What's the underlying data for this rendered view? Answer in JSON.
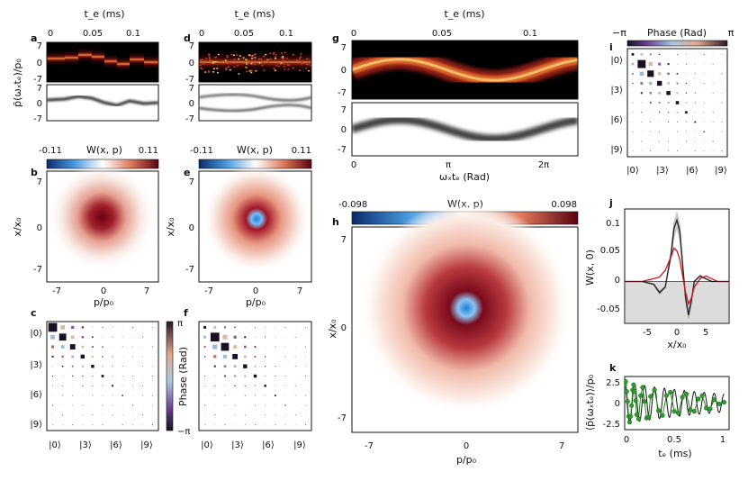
{
  "figure": {
    "panels": {
      "a": "a",
      "b": "b",
      "c": "c",
      "d": "d",
      "e": "e",
      "f": "f",
      "g": "g",
      "h": "h",
      "i": "i",
      "j": "j",
      "k": "k"
    },
    "labels": {
      "te_ms": "t_e (ms)",
      "p_bar_ylabel": "p̄(ωₓtₑ)/p₀",
      "x_x0": "x/x₀",
      "p_p0": "p/p₀",
      "wxp": "W(x, p)",
      "phase_rad": "Phase (Rad)",
      "omega_te_rad": "ωₓtₑ (Rad)",
      "wx0": "W(x, 0)",
      "k_ylabel": "⟨p̄(ωₓtₑ)⟩/p₀",
      "te_ms_k": "tₑ (ms)"
    },
    "ticks": {
      "te_top_ad": [
        "0",
        "0.05",
        "0.1"
      ],
      "te_top_g": [
        "0",
        "0.05",
        "0.1"
      ],
      "pm7": [
        "7",
        "0",
        "-7"
      ],
      "g_y": [
        "7",
        "0",
        "-7"
      ],
      "g_x": [
        "0",
        "π",
        "2π"
      ],
      "h_x": [
        "-7",
        "0",
        "7"
      ],
      "h_y": [
        "7",
        "0",
        "-7"
      ],
      "b_x": [
        "-7",
        "0",
        "7"
      ],
      "b_y": [
        "7",
        "0",
        "-7"
      ],
      "fock": [
        "|0⟩",
        "|3⟩",
        "|6⟩",
        "|9⟩"
      ],
      "j_x": [
        "-5",
        "0",
        "5"
      ],
      "j_y": [
        "0.1",
        "0.05",
        "0",
        "-0.05"
      ],
      "k_x": [
        "0",
        "0.5",
        "1"
      ],
      "k_y": [
        "2.5",
        "0",
        "-2.5"
      ],
      "phase_min": "−π",
      "phase_max": "π"
    },
    "colorbars": {
      "b_min": "-0.11",
      "b_max": "0.11",
      "e_min": "-0.11",
      "e_max": "0.11",
      "h_min": "-0.098",
      "h_max": "0.098"
    }
  },
  "chart_data": [
    {
      "id": "a",
      "type": "heatmap",
      "title": "",
      "xlabel": "t_e (ms)",
      "ylabel": "p̄(ωₓtₑ)/p₀",
      "xlim": [
        0,
        0.13
      ],
      "ylim": [
        -7,
        7
      ],
      "center_trace": [
        1,
        1.5,
        2.5,
        1.5,
        -0.5,
        -1.5,
        0.5,
        -0.5
      ]
    },
    {
      "id": "d",
      "type": "heatmap",
      "xlabel": "t_e (ms)",
      "xlim": [
        0,
        0.13
      ],
      "ylim": [
        -7,
        7
      ]
    },
    {
      "id": "g",
      "type": "heatmap",
      "xlabel": "ωₓtₑ (Rad)",
      "top_xlabel": "t_e (ms)",
      "xlim": [
        0,
        7.5
      ],
      "ylim": [
        -7,
        7
      ],
      "amplitude": 2.5
    },
    {
      "id": "b",
      "type": "heatmap",
      "title": "W(x, p)",
      "xlabel": "p/p₀",
      "ylabel": "x/x₀",
      "colorbar_range": [
        -0.11,
        0.11
      ]
    },
    {
      "id": "e",
      "type": "heatmap",
      "title": "W(x, p)",
      "xlabel": "p/p₀",
      "ylabel": "x/x₀",
      "colorbar_range": [
        -0.11,
        0.11
      ]
    },
    {
      "id": "h",
      "type": "heatmap",
      "title": "W(x, p)",
      "xlabel": "p/p₀",
      "ylabel": "x/x₀",
      "colorbar_range": [
        -0.098,
        0.098
      ]
    },
    {
      "id": "c",
      "type": "heatmap",
      "subtype": "hinton density matrix",
      "n": 11,
      "diag": [
        1.0,
        0.8,
        0.6,
        0.45,
        0.35,
        0.28,
        0.2,
        0.15,
        0.1,
        0.07,
        0.05
      ]
    },
    {
      "id": "f",
      "type": "heatmap",
      "subtype": "hinton density matrix",
      "n": 11,
      "diag": [
        0.3,
        1.0,
        0.9,
        0.6,
        0.45,
        0.35,
        0.25,
        0.18,
        0.12,
        0.08,
        0.05
      ]
    },
    {
      "id": "i",
      "type": "heatmap",
      "subtype": "hinton density matrix",
      "n": 11,
      "diag": [
        0.3,
        1.0,
        0.8,
        0.6,
        0.5,
        0.4,
        0.3,
        0.2,
        0.15,
        0.1,
        0.07
      ]
    },
    {
      "id": "j",
      "type": "line",
      "xlabel": "x/x₀",
      "ylabel": "W(x, 0)",
      "xlim": [
        -9,
        9
      ],
      "ylim": [
        -0.075,
        0.13
      ],
      "series": [
        {
          "color": "#d0121b",
          "x": [
            -9,
            -6,
            -4,
            -3,
            -2,
            -1,
            -0.5,
            0,
            0.5,
            1,
            1.5,
            2,
            2.5,
            3,
            4,
            5,
            6,
            7,
            9
          ],
          "y": [
            0,
            0,
            0.005,
            0.008,
            0.02,
            0.045,
            0.06,
            0.055,
            0.04,
            0.01,
            -0.02,
            -0.04,
            -0.03,
            -0.01,
            0.005,
            0.01,
            0.005,
            0,
            0
          ]
        },
        {
          "color": "#222222",
          "x": [
            -9,
            -6,
            -4,
            -3,
            -2,
            -1,
            -0.5,
            0,
            0.5,
            1,
            1.5,
            2,
            2.5,
            3,
            4,
            5,
            6,
            7,
            9
          ],
          "y": [
            0,
            0,
            -0.005,
            -0.02,
            -0.01,
            0.05,
            0.095,
            0.11,
            0.09,
            0.03,
            -0.03,
            -0.06,
            -0.035,
            0,
            0.01,
            0.005,
            0,
            0,
            0
          ]
        }
      ]
    },
    {
      "id": "k",
      "type": "scatter",
      "xlabel": "tₑ (ms)",
      "ylabel": "⟨p̄(ωₓtₑ)⟩/p₀",
      "xlim": [
        0,
        1.05
      ],
      "ylim": [
        -3.2,
        3.2
      ],
      "fit": {
        "amplitude": 2.5,
        "period_ms": 0.1,
        "decay_ms": 1.2
      },
      "points_x": [
        0.0,
        0.01,
        0.02,
        0.03,
        0.04,
        0.05,
        0.06,
        0.07,
        0.08,
        0.09,
        0.1,
        0.11,
        0.12,
        0.14,
        0.16,
        0.18,
        0.2,
        0.22,
        0.24,
        0.26,
        0.3,
        0.34,
        0.38,
        0.42,
        0.46,
        0.5,
        0.54,
        0.58,
        0.62,
        0.66,
        0.7,
        0.74,
        0.78,
        0.82,
        0.86,
        0.9,
        0.95,
        1.0
      ],
      "points_y": [
        2.2,
        2.6,
        1.4,
        0.2,
        -1.6,
        -2.3,
        -1.6,
        -0.3,
        1.6,
        2.2,
        1.4,
        0.3,
        -1.4,
        -1.9,
        0.9,
        1.9,
        0.2,
        -1.8,
        -1.7,
        0.8,
        1.6,
        -0.9,
        -1.5,
        0.9,
        1.3,
        -1.0,
        -1.2,
        0.7,
        1.1,
        -0.8,
        -1.0,
        0.5,
        0.9,
        -0.6,
        -0.7,
        0.4,
        -0.1,
        0.1
      ]
    }
  ]
}
